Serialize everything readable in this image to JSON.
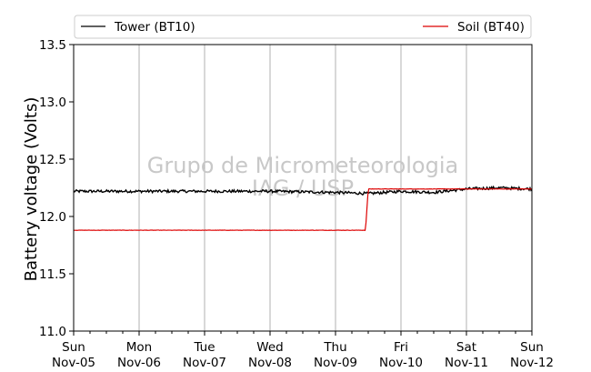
{
  "chart_data": {
    "type": "line",
    "title": "",
    "xlabel": "",
    "ylabel": "Battery voltage (Volts)",
    "ylim": [
      11.0,
      13.5
    ],
    "yticks": [
      "11.0",
      "11.5",
      "12.0",
      "12.5",
      "13.0",
      "13.5"
    ],
    "xlim": [
      "2017-11-05",
      "2017-11-12"
    ],
    "xticks": [
      {
        "day": "Sun",
        "date": "Nov-05"
      },
      {
        "day": "Mon",
        "date": "Nov-06"
      },
      {
        "day": "Tue",
        "date": "Nov-07"
      },
      {
        "day": "Wed",
        "date": "Nov-08"
      },
      {
        "day": "Thu",
        "date": "Nov-09"
      },
      {
        "day": "Fri",
        "date": "Nov-10"
      },
      {
        "day": "Sat",
        "date": "Nov-11"
      },
      {
        "day": "Sun",
        "date": "Nov-12"
      }
    ],
    "grid": "vertical",
    "legend_position": "top",
    "series": [
      {
        "name": "Tower (BT10)",
        "color": "#000000",
        "x": [
          "2017-11-05 00:00",
          "2017-11-06 00:00",
          "2017-11-07 00:00",
          "2017-11-08 00:00",
          "2017-11-09 00:00",
          "2017-11-09 12:00",
          "2017-11-10 00:00",
          "2017-11-10 12:00",
          "2017-11-11 00:00",
          "2017-11-11 12:00",
          "2017-11-12 00:00"
        ],
        "values": [
          12.22,
          12.22,
          12.22,
          12.22,
          12.21,
          12.2,
          12.22,
          12.21,
          12.24,
          12.25,
          12.24
        ]
      },
      {
        "name": "Soil (BT40)",
        "color": "#dd0000",
        "x": [
          "2017-11-05 00:00",
          "2017-11-06 00:00",
          "2017-11-07 00:00",
          "2017-11-08 00:00",
          "2017-11-09 00:00",
          "2017-11-09 11:00",
          "2017-11-09 12:00",
          "2017-11-10 00:00",
          "2017-11-11 00:00",
          "2017-11-12 00:00"
        ],
        "values": [
          11.88,
          11.88,
          11.88,
          11.88,
          11.88,
          11.88,
          12.24,
          12.24,
          12.24,
          12.24
        ]
      }
    ]
  },
  "watermark": {
    "line1": "Grupo de Micrometeorologia",
    "line2": "IAG / USP"
  },
  "colors": {
    "grid": "#b0b0b0",
    "axis": "#000000",
    "watermark": "#c8c8c8"
  }
}
